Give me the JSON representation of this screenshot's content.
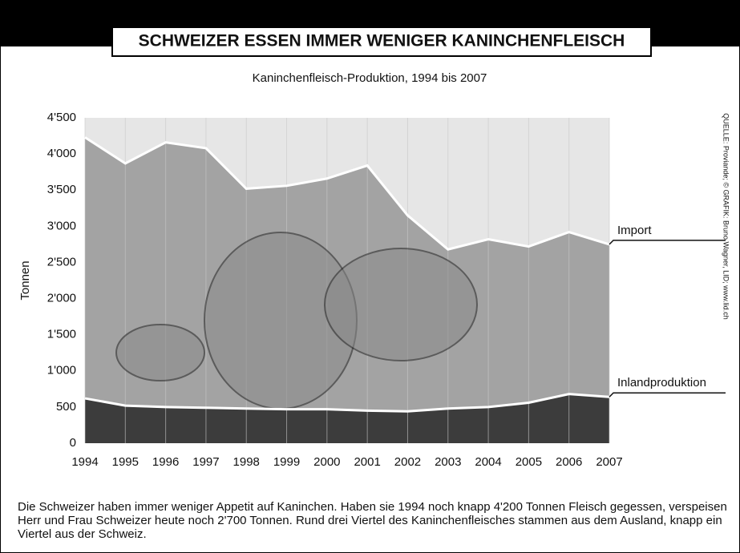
{
  "chart_data": {
    "type": "stacked-area",
    "title": "SCHWEIZER ESSEN IMMER WENIGER KANINCHENFLEISCH",
    "subtitle": "Kaninchenfleisch-Produktion, 1994 bis 2007",
    "y_label": "Tonnen",
    "source": "QUELLE: Proviande; © GRAFIK: Bruno Wagner, LID; www.lid.ch",
    "note": "Die Schweizer haben immer weniger Appetit auf Kaninchen. Haben sie 1994 noch knapp 4'200 Tonnen Fleisch gegessen, verspeisen Herr und Frau Schweizer heute noch 2'700 Tonnen. Rund drei Viertel des Kaninchenfleisches stammen aus dem Ausland, knapp ein Viertel aus der Schweiz.",
    "x": [
      1994,
      1995,
      1996,
      1997,
      1998,
      1999,
      2000,
      2001,
      2002,
      2003,
      2004,
      2005,
      2006,
      2007
    ],
    "xlim": [
      1994,
      2007
    ],
    "xticks": [
      1994,
      1995,
      1996,
      1997,
      1998,
      1999,
      2000,
      2001,
      2002,
      2003,
      2004,
      2005,
      2006,
      2007
    ],
    "ylim": [
      0,
      4500
    ],
    "yticks": [
      0,
      500,
      {
        "value": 1000,
        "label": "1'000"
      },
      {
        "value": 1500,
        "label": "1'500"
      },
      {
        "value": 2000,
        "label": "2'000"
      },
      {
        "value": 2500,
        "label": "2'500"
      },
      {
        "value": 3000,
        "label": "3'000"
      },
      {
        "value": 3500,
        "label": "3'500"
      },
      {
        "value": 4000,
        "label": "4'000"
      },
      {
        "value": 4500,
        "label": "4'500"
      }
    ],
    "grid": true,
    "series": [
      {
        "name": "Inlandproduktion",
        "color": "#3c3c3c",
        "values": [
          620,
          520,
          500,
          490,
          480,
          470,
          470,
          450,
          440,
          480,
          500,
          560,
          680,
          640
        ]
      },
      {
        "name": "Import",
        "color": "#a3a3a3",
        "values": [
          3610,
          3350,
          3660,
          3590,
          3040,
          3090,
          3190,
          3390,
          2710,
          2200,
          2320,
          2160,
          2240,
          2110
        ]
      }
    ]
  }
}
